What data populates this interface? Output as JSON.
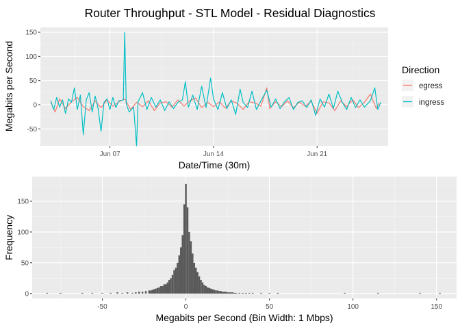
{
  "page_title": "Router Throughput - STL Model - Residual Diagnostics",
  "chart_data": [
    {
      "type": "line",
      "title": "",
      "xlabel": "Date/Time (30m)",
      "ylabel": "Megabits per Second",
      "x_tick_labels": [
        "Jun 07",
        "Jun 14",
        "Jun 21"
      ],
      "x_ticks_day": [
        7,
        14,
        21
      ],
      "xlim_day": [
        2.3,
        25.8
      ],
      "ylim": [
        -85,
        160
      ],
      "y_ticks": [
        -50,
        0,
        50,
        100,
        150
      ],
      "grid": true,
      "legend": {
        "title": "Direction",
        "placement": "right",
        "entries": [
          {
            "name": "egress",
            "color": "#F8766D"
          },
          {
            "name": "ingress",
            "color": "#00BFC4"
          }
        ]
      },
      "series": [
        {
          "name": "egress",
          "color": "#F8766D",
          "points": [
            [
              3.0,
              5
            ],
            [
              3.3,
              -15
            ],
            [
              3.6,
              12
            ],
            [
              4.0,
              -8
            ],
            [
              4.4,
              6
            ],
            [
              4.8,
              15
            ],
            [
              5.2,
              -4
            ],
            [
              5.6,
              -12
            ],
            [
              6.0,
              8
            ],
            [
              6.4,
              -6
            ],
            [
              6.8,
              10
            ],
            [
              7.2,
              -3
            ],
            [
              7.6,
              6
            ],
            [
              8.0,
              12
            ],
            [
              8.4,
              -10
            ],
            [
              8.8,
              5
            ],
            [
              9.2,
              -4
            ],
            [
              9.6,
              8
            ],
            [
              10.0,
              -12
            ],
            [
              10.4,
              4
            ],
            [
              10.8,
              6
            ],
            [
              11.2,
              -5
            ],
            [
              11.6,
              10
            ],
            [
              12.0,
              -3
            ],
            [
              12.4,
              8
            ],
            [
              12.8,
              14
            ],
            [
              13.2,
              -6
            ],
            [
              13.6,
              5
            ],
            [
              14.0,
              -4
            ],
            [
              14.4,
              6
            ],
            [
              14.8,
              -7
            ],
            [
              15.2,
              8
            ],
            [
              15.6,
              3
            ],
            [
              16.0,
              -10
            ],
            [
              16.4,
              6
            ],
            [
              16.8,
              4
            ],
            [
              17.2,
              -3
            ],
            [
              17.6,
              35
            ],
            [
              17.8,
              -8
            ],
            [
              18.2,
              6
            ],
            [
              18.6,
              -4
            ],
            [
              19.0,
              8
            ],
            [
              19.4,
              -6
            ],
            [
              19.8,
              5
            ],
            [
              20.2,
              -3
            ],
            [
              20.6,
              7
            ],
            [
              21.0,
              -18
            ],
            [
              21.4,
              6
            ],
            [
              21.8,
              4
            ],
            [
              22.2,
              -12
            ],
            [
              22.6,
              8
            ],
            [
              23.0,
              -4
            ],
            [
              23.4,
              10
            ],
            [
              23.8,
              -6
            ],
            [
              24.2,
              5
            ],
            [
              24.6,
              22
            ],
            [
              25.0,
              -8
            ],
            [
              25.2,
              4
            ]
          ]
        },
        {
          "name": "ingress",
          "color": "#00BFC4",
          "points": [
            [
              3.0,
              8
            ],
            [
              3.2,
              -10
            ],
            [
              3.4,
              15
            ],
            [
              3.6,
              -5
            ],
            [
              3.8,
              10
            ],
            [
              4.0,
              -18
            ],
            [
              4.2,
              12
            ],
            [
              4.4,
              5
            ],
            [
              4.6,
              35
            ],
            [
              4.8,
              -10
            ],
            [
              5.0,
              20
            ],
            [
              5.2,
              -62
            ],
            [
              5.4,
              10
            ],
            [
              5.6,
              25
            ],
            [
              5.8,
              -15
            ],
            [
              6.0,
              18
            ],
            [
              6.2,
              -8
            ],
            [
              6.4,
              -55
            ],
            [
              6.6,
              5
            ],
            [
              6.8,
              12
            ],
            [
              7.0,
              -10
            ],
            [
              7.2,
              15
            ],
            [
              7.4,
              -6
            ],
            [
              7.6,
              8
            ],
            [
              7.9,
              10
            ],
            [
              8.0,
              150
            ],
            [
              8.1,
              2
            ],
            [
              8.3,
              -15
            ],
            [
              8.6,
              -5
            ],
            [
              8.8,
              -85
            ],
            [
              8.9,
              6
            ],
            [
              9.2,
              25
            ],
            [
              9.5,
              -10
            ],
            [
              9.8,
              15
            ],
            [
              10.1,
              -5
            ],
            [
              10.4,
              10
            ],
            [
              10.7,
              -12
            ],
            [
              11.0,
              6
            ],
            [
              11.3,
              -8
            ],
            [
              11.6,
              5
            ],
            [
              11.9,
              10
            ],
            [
              12.1,
              48
            ],
            [
              12.3,
              -5
            ],
            [
              12.6,
              20
            ],
            [
              12.9,
              -10
            ],
            [
              13.2,
              38
            ],
            [
              13.5,
              -6
            ],
            [
              13.8,
              55
            ],
            [
              14.0,
              12
            ],
            [
              14.3,
              -10
            ],
            [
              14.6,
              25
            ],
            [
              14.9,
              -8
            ],
            [
              15.2,
              10
            ],
            [
              15.5,
              -20
            ],
            [
              15.8,
              32
            ],
            [
              16.0,
              5
            ],
            [
              16.3,
              -6
            ],
            [
              16.6,
              28
            ],
            [
              16.9,
              -10
            ],
            [
              17.2,
              8
            ],
            [
              17.6,
              30
            ],
            [
              17.9,
              -5
            ],
            [
              18.2,
              12
            ],
            [
              18.5,
              -8
            ],
            [
              18.8,
              6
            ],
            [
              19.1,
              15
            ],
            [
              19.4,
              -10
            ],
            [
              19.7,
              5
            ],
            [
              20.0,
              8
            ],
            [
              20.3,
              -6
            ],
            [
              20.6,
              10
            ],
            [
              20.9,
              -22
            ],
            [
              21.2,
              12
            ],
            [
              21.5,
              -5
            ],
            [
              21.8,
              22
            ],
            [
              22.1,
              -8
            ],
            [
              22.4,
              28
            ],
            [
              22.7,
              5
            ],
            [
              23.0,
              -10
            ],
            [
              23.3,
              15
            ],
            [
              23.6,
              -6
            ],
            [
              23.9,
              10
            ],
            [
              24.2,
              -5
            ],
            [
              24.6,
              8
            ],
            [
              24.9,
              35
            ],
            [
              25.1,
              -10
            ],
            [
              25.3,
              5
            ]
          ]
        }
      ]
    },
    {
      "type": "bar",
      "title": "",
      "subtype": "histogram",
      "xlabel": "Megabits per Second (Bin Width: 1 Mbps)",
      "ylabel": "Frequency",
      "xlim": [
        -92,
        162
      ],
      "ylim": [
        -8,
        190
      ],
      "x_ticks": [
        -50,
        0,
        50,
        100,
        150
      ],
      "y_ticks": [
        0,
        50,
        100,
        150
      ],
      "grid": true,
      "bar_color": "#595959",
      "bin_width": 1,
      "bins_x": [
        -83,
        -75,
        -62,
        -56,
        -50,
        -45,
        -41,
        -38,
        -35,
        -32,
        -30,
        -28,
        -26,
        -24,
        -22,
        -21,
        -20,
        -19,
        -18,
        -17,
        -16,
        -15,
        -14,
        -13,
        -12,
        -11,
        -10,
        -9,
        -8,
        -7,
        -6,
        -5,
        -4,
        -3,
        -2,
        -1,
        0,
        1,
        2,
        3,
        4,
        5,
        6,
        7,
        8,
        9,
        10,
        11,
        12,
        13,
        14,
        15,
        16,
        17,
        18,
        19,
        20,
        21,
        22,
        23,
        24,
        25,
        26,
        27,
        28,
        29,
        30,
        32,
        34,
        36,
        38,
        40,
        45,
        50,
        55,
        95,
        115,
        140,
        152
      ],
      "bins_count": [
        1,
        1,
        1,
        1,
        1,
        1,
        2,
        1,
        2,
        1,
        2,
        3,
        3,
        4,
        5,
        5,
        6,
        7,
        8,
        9,
        10,
        12,
        12,
        15,
        15,
        18,
        22,
        25,
        30,
        38,
        42,
        50,
        62,
        75,
        95,
        145,
        178,
        140,
        100,
        85,
        65,
        50,
        42,
        35,
        28,
        22,
        18,
        14,
        12,
        10,
        9,
        8,
        7,
        6,
        5,
        5,
        4,
        4,
        3,
        3,
        3,
        2,
        2,
        2,
        2,
        1,
        1,
        1,
        1,
        1,
        1,
        1,
        1,
        1,
        1,
        1,
        1,
        1,
        1
      ]
    }
  ]
}
